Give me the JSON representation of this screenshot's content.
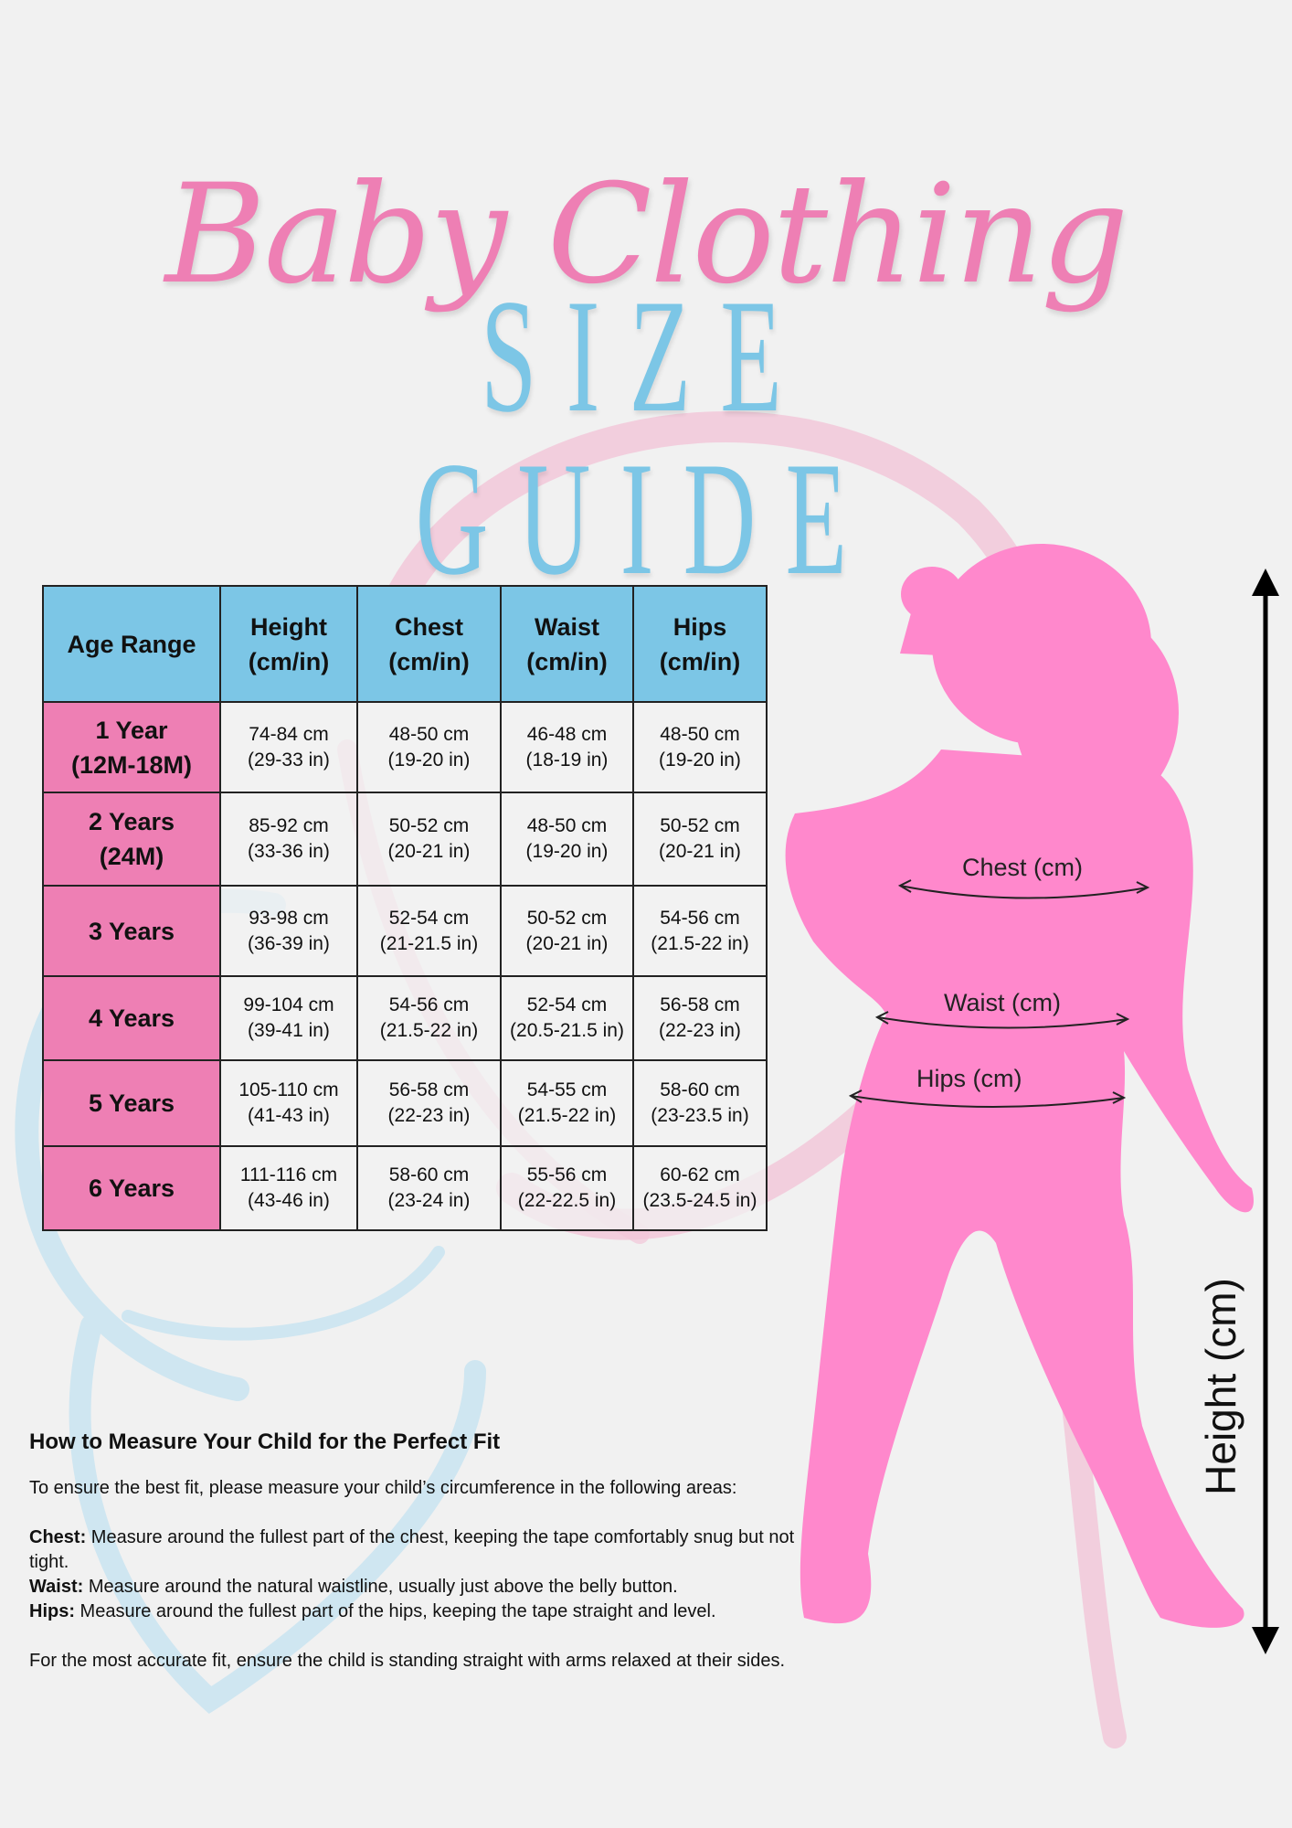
{
  "title": {
    "script": "Baby Clothing",
    "caps": "SIZE GUIDE"
  },
  "colors": {
    "pink": "#ee7fb4",
    "blue": "#7cc6e6",
    "silhouette": "#ff88cc",
    "background": "#f1f1f1"
  },
  "table": {
    "headers": [
      {
        "l1": "Age Range",
        "l2": ""
      },
      {
        "l1": "Height",
        "l2": "(cm/in)"
      },
      {
        "l1": "Chest",
        "l2": "(cm/in)"
      },
      {
        "l1": "Waist",
        "l2": "(cm/in)"
      },
      {
        "l1": "Hips",
        "l2": "(cm/in)"
      }
    ],
    "rows": [
      {
        "age1": "1 Year",
        "age2": "(12M-18M)",
        "cells": [
          [
            "74-84 cm",
            "(29-33 in)"
          ],
          [
            "48-50 cm",
            "(19-20 in)"
          ],
          [
            "46-48 cm",
            "(18-19 in)"
          ],
          [
            "48-50 cm",
            "(19-20 in)"
          ]
        ]
      },
      {
        "age1": "2 Years",
        "age2": "(24M)",
        "cells": [
          [
            "85-92 cm",
            "(33-36 in)"
          ],
          [
            "50-52 cm",
            "(20-21 in)"
          ],
          [
            "48-50 cm",
            "(19-20 in)"
          ],
          [
            "50-52 cm",
            "(20-21 in)"
          ]
        ]
      },
      {
        "age1": "3 Years",
        "age2": "",
        "cells": [
          [
            "93-98 cm",
            "(36-39 in)"
          ],
          [
            "52-54 cm",
            "(21-21.5 in)"
          ],
          [
            "50-52 cm",
            "(20-21 in)"
          ],
          [
            "54-56 cm",
            "(21.5-22 in)"
          ]
        ]
      },
      {
        "age1": "4 Years",
        "age2": "",
        "cells": [
          [
            "99-104 cm",
            "(39-41 in)"
          ],
          [
            "54-56 cm",
            "(21.5-22 in)"
          ],
          [
            "52-54 cm",
            "(20.5-21.5 in)"
          ],
          [
            "56-58 cm",
            "(22-23 in)"
          ]
        ]
      },
      {
        "age1": "5 Years",
        "age2": "",
        "cells": [
          [
            "105-110 cm",
            "(41-43 in)"
          ],
          [
            "56-58 cm",
            "(22-23 in)"
          ],
          [
            "54-55 cm",
            "(21.5-22 in)"
          ],
          [
            "58-60 cm",
            "(23-23.5 in)"
          ]
        ]
      },
      {
        "age1": "6 Years",
        "age2": "",
        "cells": [
          [
            "111-116 cm",
            "(43-46 in)"
          ],
          [
            "58-60 cm",
            "(23-24 in)"
          ],
          [
            "55-56 cm",
            "(22-22.5 in)"
          ],
          [
            "60-62 cm",
            "(23.5-24.5 in)"
          ]
        ]
      }
    ]
  },
  "figure": {
    "chest_label": "Chest (cm)",
    "waist_label": "Waist (cm)",
    "hips_label": "Hips (cm)",
    "height_label": "Height (cm)"
  },
  "how": {
    "heading": "How to Measure Your Child for the Perfect Fit",
    "intro": "To ensure the best fit, please measure your child’s circumference in the following areas:",
    "items": [
      {
        "term": "Chest:",
        "text": " Measure around the fullest part of the chest, keeping the tape comfortably snug but not tight."
      },
      {
        "term": "Waist:",
        "text": " Measure around the natural waistline, usually just above the belly button."
      },
      {
        "term": "Hips:",
        "text": " Measure around the fullest part of the hips, keeping the tape straight and level."
      }
    ],
    "footer": "For the most accurate fit, ensure the child is standing straight with arms relaxed at their sides."
  }
}
